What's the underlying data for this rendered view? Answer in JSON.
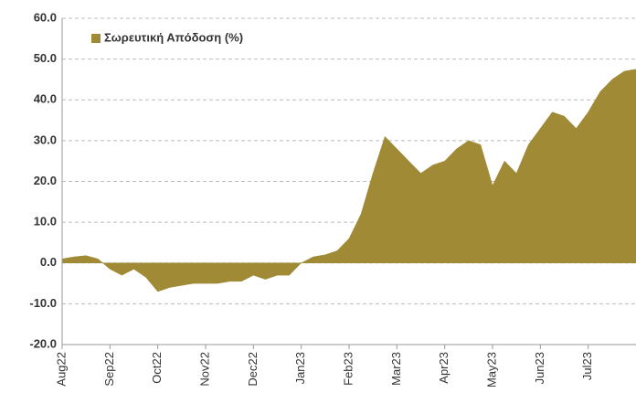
{
  "chart_data": {
    "type": "area",
    "categories": [
      "Aug22",
      null,
      null,
      null,
      "Sep22",
      null,
      null,
      null,
      "Oct22",
      null,
      null,
      null,
      "Nov22",
      null,
      null,
      null,
      "Dec22",
      null,
      null,
      null,
      "Jan23",
      null,
      null,
      null,
      "Feb23",
      null,
      null,
      null,
      "Mar23",
      null,
      null,
      null,
      "Apr23",
      null,
      null,
      null,
      "May23",
      null,
      null,
      null,
      "Jun23",
      null,
      null,
      null,
      "Jul23",
      null,
      null,
      null,
      null
    ],
    "series": [
      {
        "name": "Σωρευτική Απόδοση (%)",
        "color": "#a08a35",
        "values": [
          1.0,
          1.5,
          1.8,
          1.0,
          -1.5,
          -3,
          -1.5,
          -3.5,
          -7,
          -6,
          -5.5,
          -5,
          -5,
          -5,
          -4.5,
          -4.5,
          -3,
          -4,
          -3,
          -3,
          0,
          1.5,
          2,
          3,
          6,
          12,
          22,
          31,
          28,
          25,
          22,
          24,
          25,
          28,
          30,
          29,
          19,
          25,
          22,
          29,
          33,
          37,
          36,
          33,
          37,
          42,
          45,
          47,
          47.5
        ]
      }
    ],
    "ylim": [
      -20,
      60
    ],
    "yticks": [
      {
        "value": -20,
        "label": "-20.0"
      },
      {
        "value": -10,
        "label": "-10.0"
      },
      {
        "value": 0,
        "label": "0.0"
      },
      {
        "value": 10,
        "label": "10.0"
      },
      {
        "value": 20,
        "label": "20.0"
      },
      {
        "value": 30,
        "label": "30.0"
      },
      {
        "value": 40,
        "label": "40.0"
      },
      {
        "value": 50,
        "label": "50.0"
      },
      {
        "value": 60,
        "label": "60.0"
      }
    ],
    "grid": true,
    "legend": "top-left"
  }
}
